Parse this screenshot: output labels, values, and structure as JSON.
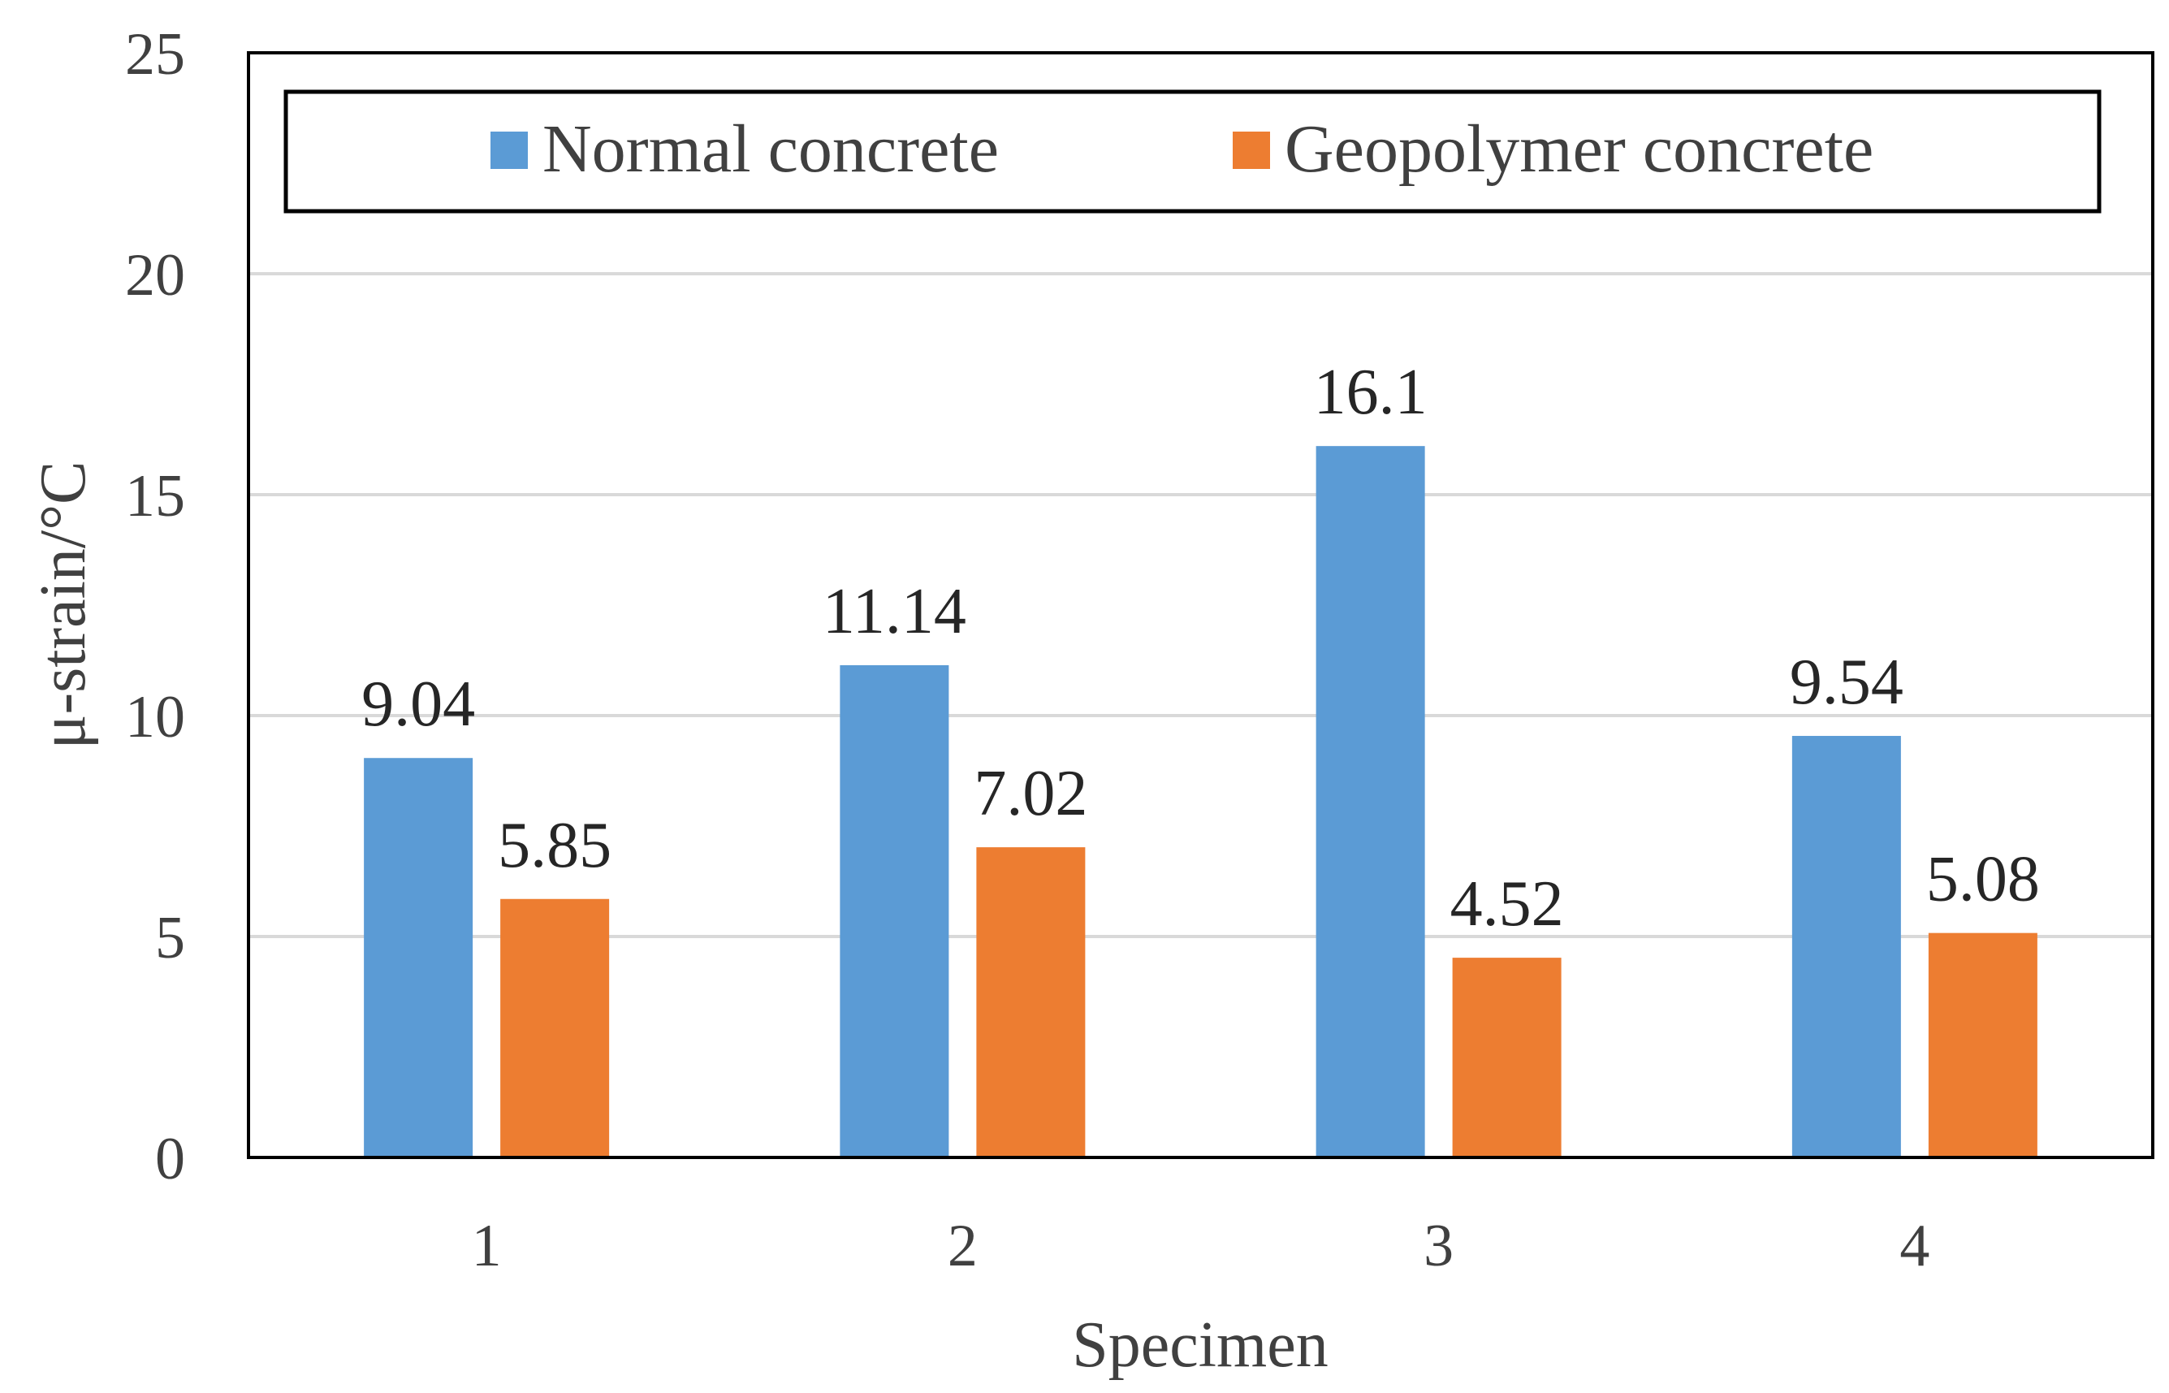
{
  "chart_data": {
    "type": "bar",
    "title": "",
    "xlabel": "Specimen",
    "ylabel": "μ-strain/°C",
    "categories": [
      "1",
      "2",
      "3",
      "4"
    ],
    "series": [
      {
        "name": "Normal concrete",
        "values": [
          9.04,
          11.14,
          16.1,
          9.54
        ],
        "labels": [
          "9.04",
          "11.14",
          "16.1",
          "9.54"
        ],
        "color": "#5B9BD5"
      },
      {
        "name": "Geopolymer concrete",
        "values": [
          5.85,
          7.02,
          4.52,
          5.08
        ],
        "labels": [
          "5.85",
          "7.02",
          "4.52",
          "5.08"
        ],
        "color": "#ED7D31"
      }
    ],
    "ylim": [
      0,
      25
    ],
    "yticks": [
      0,
      5,
      10,
      15,
      20,
      25
    ],
    "grid": true,
    "legend_position": "top"
  },
  "colors": {
    "gridline": "#D9D9D9",
    "frame": "#000000"
  }
}
